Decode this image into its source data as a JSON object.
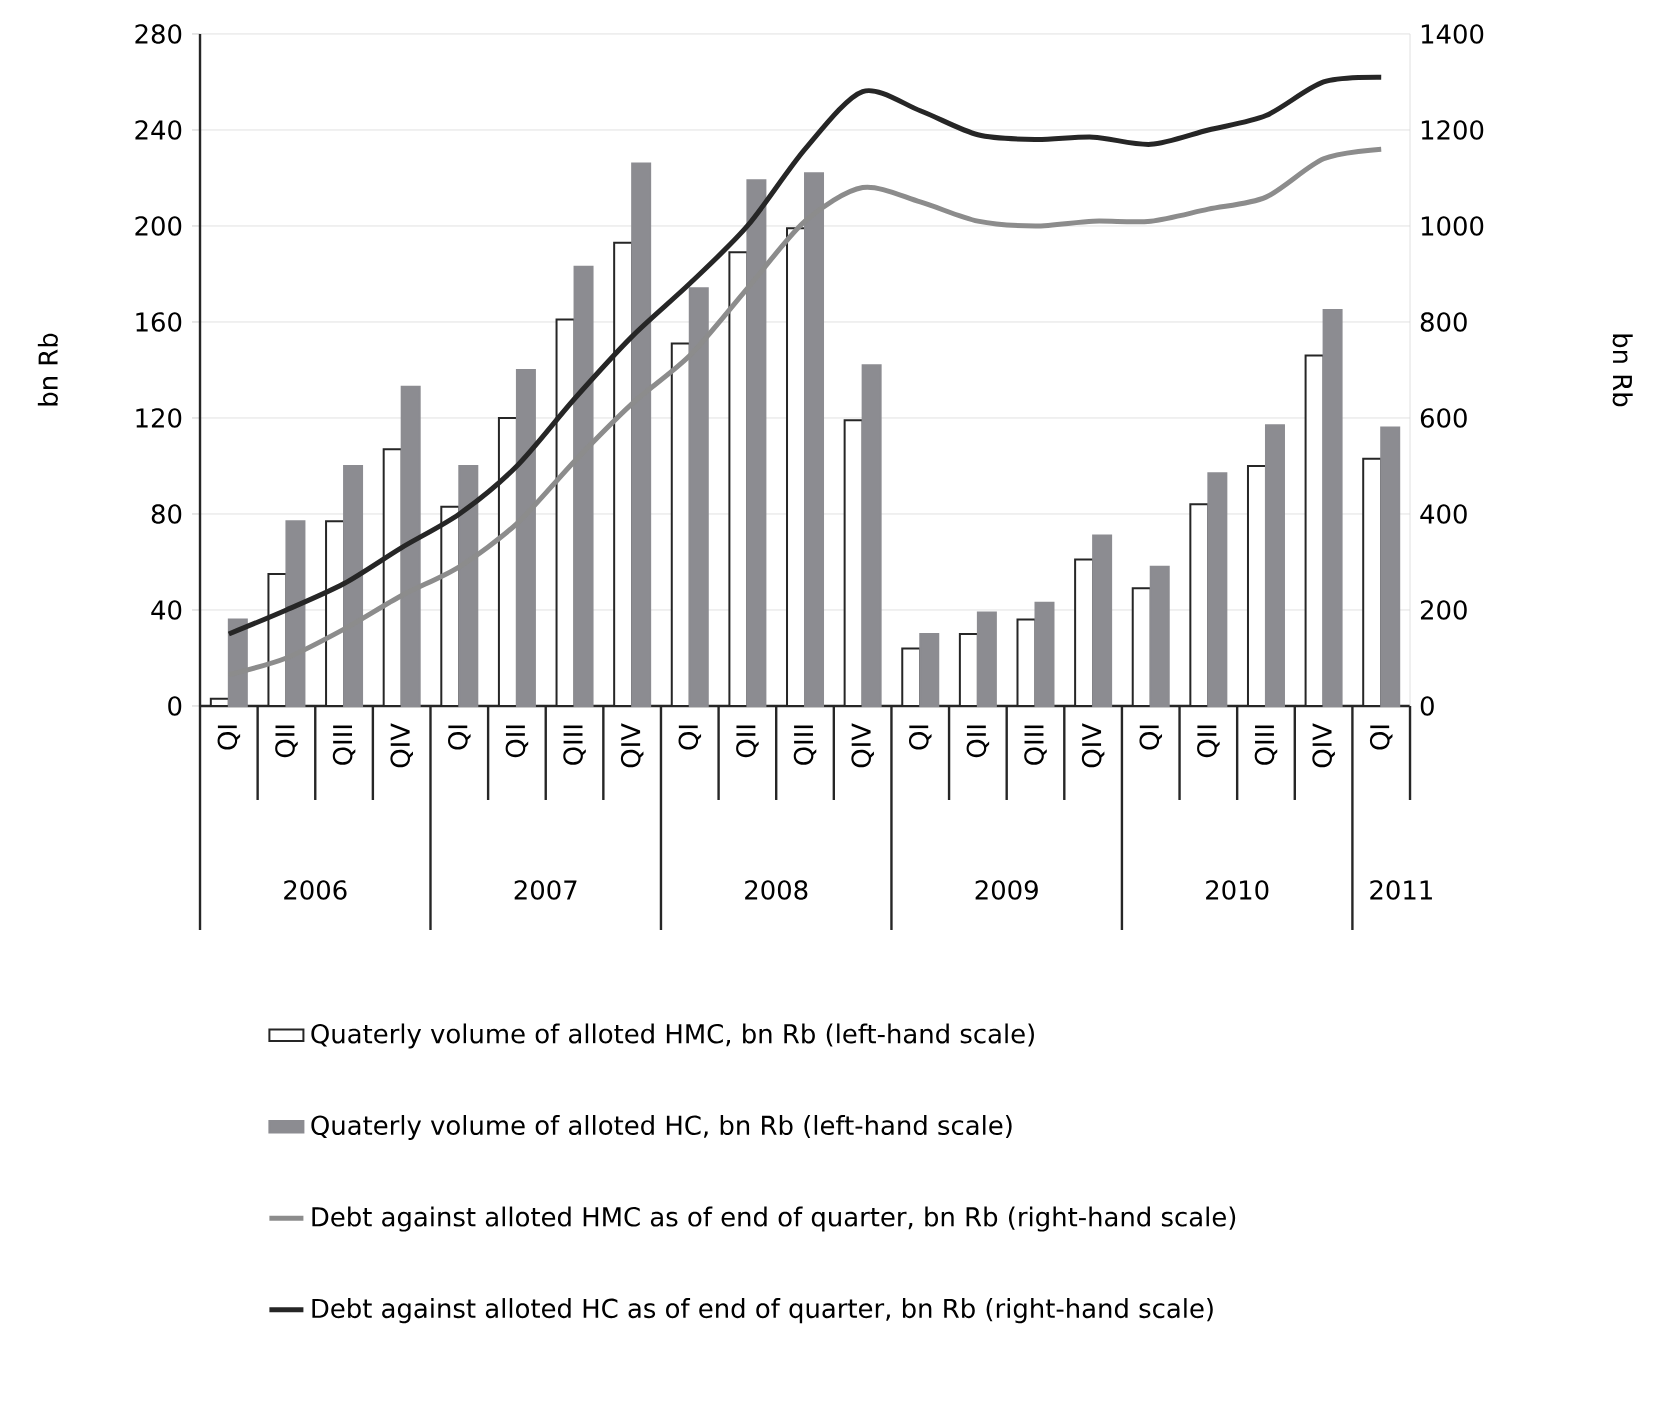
{
  "chart_data": {
    "type": "bar",
    "ylabel": "bn Rb",
    "y2label": "bn Rb",
    "categories": [
      "QI",
      "QII",
      "QIII",
      "QIV",
      "QI",
      "QII",
      "QIII",
      "QIV",
      "QI",
      "QII",
      "QIII",
      "QIV",
      "QI",
      "QII",
      "QIII",
      "QIV",
      "QI",
      "QII",
      "QIII",
      "QIV",
      "QI"
    ],
    "annotations": [
      "2006",
      "2007",
      "2008",
      "2009",
      "2010",
      "2011"
    ],
    "series": [
      {
        "name": "Quaterly volume of alloted HMC, bn Rb (left-hand scale)",
        "color": "#ffffff",
        "values": [
          3,
          55,
          77,
          107,
          83,
          120,
          161,
          193,
          151,
          189,
          199,
          119,
          24,
          30,
          36,
          61,
          49,
          84,
          100,
          146,
          103
        ]
      },
      {
        "name": "Quaterly volume of alloted HC, bn Rb (left-hand scale)",
        "color": "#8c8c91",
        "values": [
          36,
          77,
          100,
          133,
          100,
          140,
          183,
          226,
          174,
          219,
          222,
          142,
          30,
          39,
          43,
          71,
          58,
          97,
          117,
          165,
          116
        ]
      },
      {
        "name": "Debt against alloted HMC as of  end of quarter, bn Rb (right-hand scale)",
        "type": "line",
        "axis": "y2",
        "color": "#8c8c8c",
        "values": [
          65,
          100,
          160,
          230,
          290,
          380,
          510,
          630,
          730,
          870,
          1010,
          1080,
          1050,
          1010,
          1000,
          1010,
          1010,
          1035,
          1060,
          1140,
          1160
        ]
      },
      {
        "name": "Debt against alloted HC as of  end of quarter, bn Rb (right-hand scale)",
        "type": "line",
        "axis": "y2",
        "color": "#262626",
        "values": [
          150,
          200,
          255,
          330,
          400,
          500,
          640,
          770,
          880,
          1000,
          1160,
          1280,
          1240,
          1190,
          1180,
          1185,
          1170,
          1200,
          1230,
          1300,
          1310
        ]
      }
    ],
    "ylim": [
      0,
      280
    ],
    "yticks": [
      0,
      40,
      80,
      120,
      160,
      200,
      240,
      280
    ],
    "y2lim": [
      0,
      1400
    ],
    "y2ticks": [
      0,
      200,
      400,
      600,
      800,
      1000,
      1200,
      1400
    ],
    "grid": "y",
    "legend": "bottom"
  }
}
